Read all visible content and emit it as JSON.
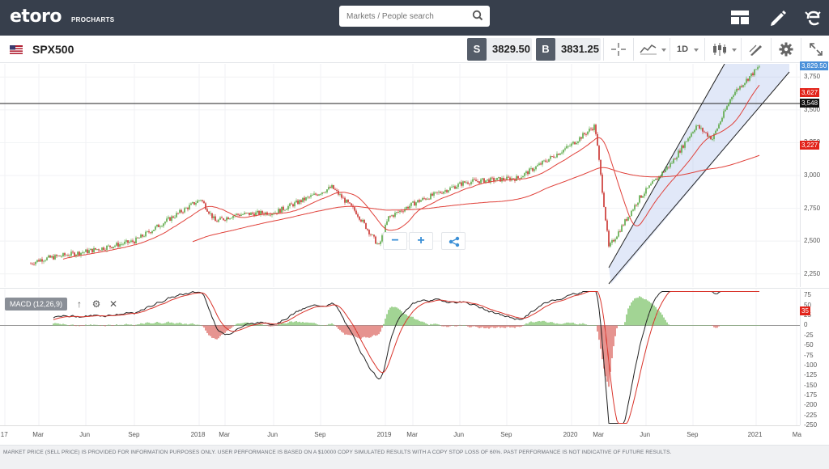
{
  "header": {
    "logo_text": "etoro",
    "logo_sub": "PROCHARTS",
    "search_placeholder": "Markets / People search"
  },
  "toolbar": {
    "symbol": "SPX500",
    "sell_tag": "S",
    "sell_price": "3829.50",
    "buy_tag": "B",
    "buy_price": "3831.25",
    "timeframe": "1D"
  },
  "price_axis": {
    "ticks": [
      "3,750",
      "3,500",
      "3,250",
      "3,000",
      "2,750",
      "2,500",
      "2,250"
    ],
    "current_price": "3,829.50",
    "line_price": "3,548",
    "marker_1": "3,627",
    "marker_2": "3,227",
    "current_color": "#4a90d9",
    "marker_color": "#e2231a",
    "line_color": "#111111"
  },
  "macd": {
    "legend": "MACD (12,26,9)",
    "ticks": [
      "75",
      "50",
      "25",
      "0",
      "-25",
      "-50",
      "-75",
      "-100",
      "-125",
      "-150",
      "-175",
      "-200",
      "-225",
      "-250"
    ],
    "value_flag": "35"
  },
  "x_axis": {
    "labels": [
      "17",
      "Mar",
      "Jun",
      "Sep",
      "2018",
      "Mar",
      "Jun",
      "Sep",
      "2019",
      "Mar",
      "Jun",
      "Sep",
      "2020",
      "Mar",
      "Jun",
      "Sep",
      "2021",
      "Ma"
    ]
  },
  "zoom_controls": {
    "zoom_out": "−",
    "zoom_in": "+"
  },
  "footer": {
    "disclaimer": "MARKET PRICE (SELL PRICE) IS PROVIDED FOR INFORMATION PURPOSES ONLY. USER PERFORMANCE IS BASED ON A $10000 COPY SIMULATED RESULTS WITH A COPY STOP LOSS OF 60%. PAST PERFORMANCE IS NOT INDICATIVE OF FUTURE RESULTS."
  },
  "chart_data": {
    "type": "candlestick",
    "symbol": "SPX500",
    "ylim": [
      2150,
      3850
    ],
    "x": [
      "2017-02",
      "2017-03",
      "2017-06",
      "2017-09",
      "2018-01",
      "2018-02",
      "2018-03",
      "2018-06",
      "2018-09",
      "2018-10",
      "2018-12",
      "2019-01",
      "2019-03",
      "2019-06",
      "2019-09",
      "2020-01",
      "2020-02",
      "2020-03",
      "2020-04",
      "2020-06",
      "2020-09",
      "2020-10",
      "2020-11",
      "2021-01"
    ],
    "close": [
      2330,
      2360,
      2420,
      2500,
      2820,
      2650,
      2700,
      2720,
      2910,
      2720,
      2460,
      2680,
      2800,
      2950,
      2980,
      3230,
      3380,
      2450,
      2830,
      3100,
      3380,
      3280,
      3620,
      3829.5
    ],
    "moving_averages": [
      {
        "period": "short"
      },
      {
        "period": "long"
      }
    ],
    "horizontal_line": 3548,
    "macd_ylim": [
      -250,
      90
    ]
  }
}
